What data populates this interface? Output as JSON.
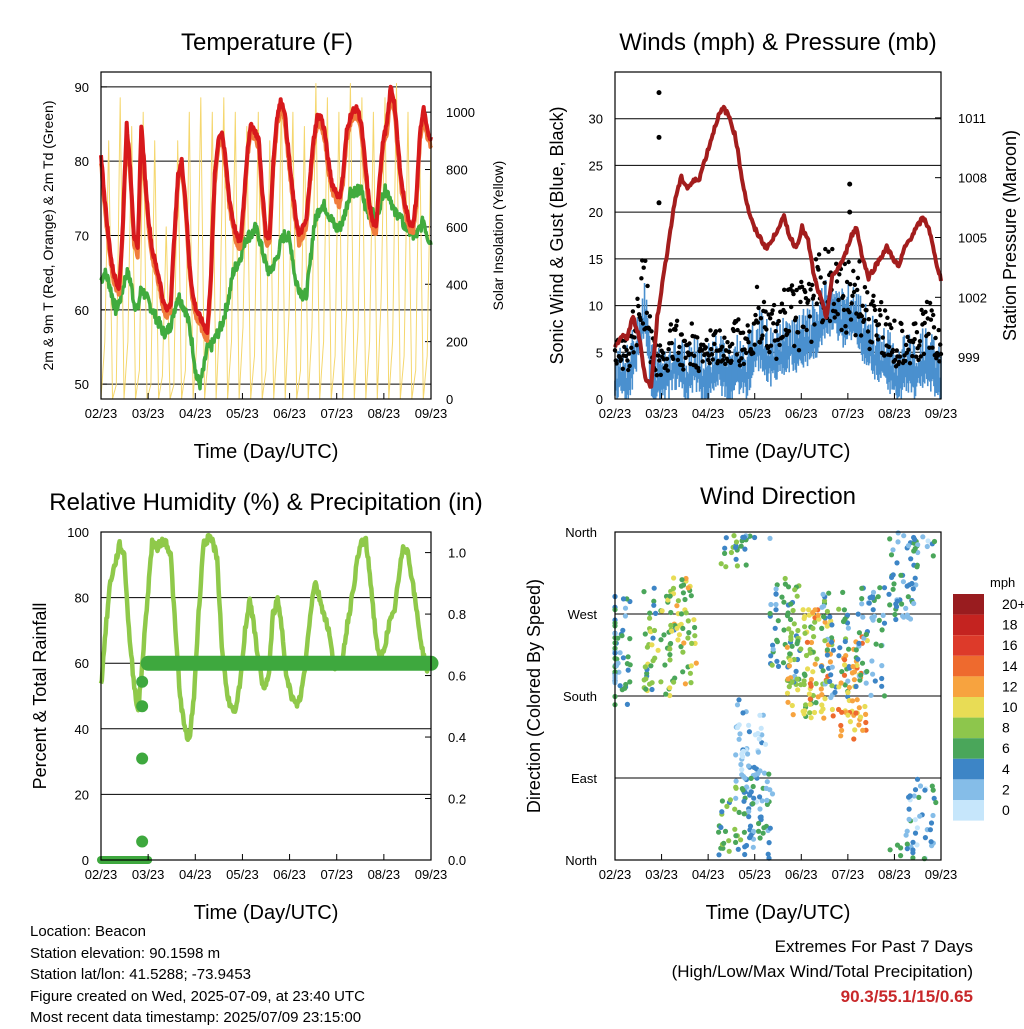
{
  "chart_data": [
    {
      "type": "line",
      "title": "Temperature (F)",
      "xlabel": "Time (Day/UTC)",
      "ylabel": "2m & 9m T (Red, Orange) & 2m Td (Green)",
      "ylabel_right": "Solar Insolation (Yellow)",
      "x_ticks": [
        "02/23",
        "03/23",
        "04/23",
        "05/23",
        "06/23",
        "07/23",
        "08/23",
        "09/23"
      ],
      "ylim": [
        48,
        92
      ],
      "y_ticks": [
        50,
        60,
        70,
        80,
        90
      ],
      "ylim_right": [
        0,
        1140
      ],
      "y_ticks_right": [
        0,
        200,
        400,
        600,
        800,
        1000
      ],
      "grid": "horizontal",
      "series": [
        {
          "name": "2m T",
          "color": "#d7191c",
          "values": [
            81,
            75,
            70,
            66,
            64,
            63,
            72,
            85,
            79,
            70,
            68,
            85,
            78,
            72,
            68,
            66,
            64,
            61,
            60,
            61,
            70,
            78,
            80,
            75,
            67,
            62,
            60,
            59,
            58,
            57,
            65,
            78,
            83,
            84,
            80,
            75,
            72,
            70,
            69,
            75,
            82,
            85,
            84,
            83,
            76,
            70,
            70,
            80,
            86,
            88,
            87,
            82,
            77,
            73,
            70,
            71,
            72,
            78,
            83,
            86,
            86,
            84,
            80,
            77,
            76,
            75,
            78,
            84,
            86,
            87,
            87,
            85,
            80,
            75,
            72,
            71,
            78,
            83,
            85,
            90,
            88,
            82,
            77,
            74,
            72,
            71,
            75,
            84,
            87,
            84,
            83
          ]
        },
        {
          "name": "9m T",
          "color": "#f07c3c",
          "values": [
            80,
            74,
            69,
            65,
            63,
            62,
            71,
            84,
            78,
            69,
            67,
            84,
            77,
            71,
            67,
            65,
            63,
            60,
            59,
            60,
            69,
            77,
            79,
            74,
            66,
            61,
            59,
            58,
            57,
            56,
            64,
            77,
            82,
            83,
            79,
            74,
            71,
            69,
            68,
            74,
            81,
            84,
            83,
            82,
            75,
            69,
            69,
            79,
            85,
            87,
            86,
            81,
            76,
            72,
            69,
            70,
            71,
            77,
            82,
            85,
            85,
            83,
            79,
            76,
            75,
            74,
            77,
            83,
            85,
            86,
            86,
            84,
            79,
            74,
            71,
            70,
            77,
            82,
            84,
            89,
            87,
            81,
            76,
            73,
            71,
            70,
            74,
            83,
            86,
            83,
            82
          ]
        },
        {
          "name": "2m Td",
          "color": "#41ab3e",
          "values": [
            64,
            65,
            64,
            62,
            60,
            61,
            63,
            65,
            64,
            61,
            60,
            63,
            62,
            61,
            60,
            59,
            58,
            57,
            57,
            58,
            60,
            62,
            61,
            60,
            58,
            55,
            51,
            50,
            52,
            55,
            55,
            56,
            57,
            58,
            60,
            62,
            65,
            66,
            67,
            69,
            70,
            70,
            71,
            70,
            68,
            66,
            65,
            66,
            67,
            69,
            70,
            70,
            68,
            64,
            63,
            62,
            62,
            66,
            71,
            73,
            74,
            74,
            73,
            72,
            71,
            71,
            72,
            74,
            76,
            76,
            76,
            76,
            74,
            73,
            73,
            72,
            74,
            76,
            76,
            75,
            73,
            73,
            72,
            71,
            71,
            70,
            70,
            71,
            72,
            70,
            69
          ]
        },
        {
          "name": "Solar Insolation",
          "color": "#f5d76e",
          "values": [
            0,
            200,
            900,
            0,
            50,
            1050,
            0,
            200,
            950,
            0,
            100,
            1000,
            0,
            50,
            900,
            0,
            80,
            600,
            0,
            50,
            900,
            0,
            100,
            1000,
            0,
            200,
            1050,
            0,
            150,
            1000,
            0,
            300,
            1050,
            0,
            200,
            1000,
            0,
            250,
            950,
            0,
            150,
            1000,
            0,
            100,
            900,
            0,
            200,
            1050,
            0,
            300,
            1000,
            0,
            100,
            950,
            0,
            250,
            1100,
            0,
            200,
            1050,
            0,
            150,
            1000,
            0,
            300,
            1100,
            0,
            250,
            1050,
            0,
            200,
            1000,
            0,
            350,
            1050,
            0,
            200,
            1100,
            0,
            150,
            1000,
            0,
            100,
            950,
            0,
            150,
            900
          ]
        }
      ]
    },
    {
      "type": "line",
      "title": "Winds (mph) & Pressure (mb)",
      "xlabel": "Time (Day/UTC)",
      "ylabel": "Sonic Wind & Gust (Blue, Black)",
      "ylabel_right": "Station Pressure (Maroon)",
      "x_ticks": [
        "02/23",
        "03/23",
        "04/23",
        "05/23",
        "06/23",
        "07/23",
        "08/23",
        "09/23"
      ],
      "ylim": [
        0,
        35
      ],
      "y_ticks": [
        0,
        5,
        10,
        15,
        20,
        25,
        30
      ],
      "ylim_right": [
        996.9,
        1013.3
      ],
      "y_ticks_right": [
        999,
        1002,
        1005,
        1008,
        1011
      ],
      "grid": "horizontal",
      "series": [
        {
          "name": "Sonic Wind",
          "color": "#4a90cf",
          "values": [
            3,
            4,
            3,
            5,
            8,
            10,
            4,
            3,
            3,
            4,
            5,
            4,
            3,
            5,
            4,
            3,
            4,
            5,
            4,
            3,
            5,
            4,
            4,
            6,
            7,
            6,
            5,
            6,
            6,
            7,
            6,
            7,
            7,
            8,
            9,
            10,
            11,
            10,
            9,
            10,
            9,
            8,
            7,
            6,
            5,
            5,
            4,
            3,
            5,
            4,
            4,
            5,
            5,
            4,
            3
          ]
        },
        {
          "name": "Gust",
          "color": "#000000",
          "values": [
            6,
            7,
            6,
            10,
            15,
            16,
            8,
            6,
            6,
            8,
            9,
            7,
            6,
            9,
            7,
            6,
            8,
            9,
            7,
            6,
            9,
            8,
            8,
            11,
            13,
            12,
            10,
            11,
            12,
            13,
            12,
            13,
            14,
            15,
            16,
            18,
            17,
            16,
            15,
            17,
            16,
            14,
            13,
            12,
            11,
            10,
            9,
            8,
            10,
            9,
            8,
            10,
            11,
            9,
            7
          ]
        },
        {
          "name": "Gust outliers",
          "color": "#000000",
          "values": [
            32.8,
            28,
            21,
            23,
            20
          ]
        },
        {
          "name": "Station Pressure",
          "color": "#a31d1d",
          "values": [
            999.5,
            1000,
            1000,
            1001,
            1000,
            998,
            997.5,
            1001,
            1003,
            1005,
            1007,
            1008,
            1007.5,
            1007.8,
            1008,
            1009,
            1010,
            1011,
            1011.5,
            1011,
            1010,
            1008,
            1006.5,
            1005.5,
            1005,
            1004.5,
            1004.8,
            1005.5,
            1006,
            1005,
            1004.5,
            1005.5,
            1004.8,
            1003,
            1002,
            1001,
            1003,
            1003.5,
            1004,
            1005,
            1005.5,
            1004,
            1003,
            1003.5,
            1004,
            1004.5,
            1004,
            1003.5,
            1004.5,
            1005,
            1005.5,
            1006,
            1005.5,
            1004,
            1002.9
          ]
        }
      ]
    },
    {
      "type": "line",
      "title": "Relative Humidity (%) & Precipitation (in)",
      "xlabel": "Time (Day/UTC)",
      "ylabel": "Percent & Total Rainfall",
      "x_ticks": [
        "02/23",
        "03/23",
        "04/23",
        "05/23",
        "06/23",
        "07/23",
        "08/23",
        "09/23"
      ],
      "ylim": [
        0,
        100
      ],
      "y_ticks": [
        0,
        20,
        40,
        60,
        80,
        100
      ],
      "ylim_right": [
        0,
        1.067
      ],
      "y_ticks_right": [
        "0.0",
        "0.2",
        "0.4",
        "0.6",
        "0.8",
        "1.0"
      ],
      "grid": "horizontal",
      "series": [
        {
          "name": "Relative Humidity",
          "color": "#8fc94a",
          "values": [
            53,
            70,
            85,
            90,
            96,
            93,
            70,
            55,
            45,
            62,
            80,
            97,
            95,
            97,
            97,
            93,
            70,
            50,
            40,
            36,
            50,
            75,
            96,
            98,
            97,
            92,
            65,
            52,
            46,
            45,
            55,
            70,
            80,
            70,
            60,
            52,
            55,
            75,
            79,
            70,
            55,
            50,
            47,
            50,
            60,
            75,
            85,
            80,
            75,
            70,
            60,
            58,
            62,
            72,
            80,
            90,
            97,
            97,
            85,
            70,
            60,
            65,
            72,
            75,
            85,
            96,
            94,
            85,
            75,
            65,
            58,
            60
          ]
        },
        {
          "name": "Total Rainfall",
          "color": "#3ea83e",
          "x": [
            "02/23",
            "03/23",
            "03/23",
            "03/23",
            "03/23",
            "03/23",
            "03/23",
            "09/23"
          ],
          "values": [
            0,
            0,
            0.06,
            0.33,
            0.5,
            0.58,
            0.64,
            0.64
          ]
        }
      ]
    },
    {
      "type": "scatter",
      "title": "Wind Direction",
      "xlabel": "Time (Day/UTC)",
      "ylabel": "Direction (Colored By Speed)",
      "x_ticks": [
        "02/23",
        "03/23",
        "04/23",
        "05/23",
        "06/23",
        "07/23",
        "08/23",
        "09/23"
      ],
      "y_ticks": [
        "North",
        "East",
        "South",
        "West",
        "North"
      ],
      "grid": "horizontal",
      "colorbar": {
        "title": "mph",
        "labels": [
          "20+",
          "18",
          "16",
          "14",
          "12",
          "10",
          "8",
          "6",
          "4",
          "2",
          "0"
        ],
        "colors": [
          "#991c1f",
          "#c42320",
          "#dd3a2a",
          "#ee6a2e",
          "#f7a33f",
          "#e8dc55",
          "#8dc64c",
          "#4aa65a",
          "#3d85c6",
          "#85bde8",
          "#c6e6fb"
        ]
      },
      "series": [
        {
          "name": "Direction",
          "clusters": [
            {
              "day": 0,
              "dir": 230,
              "speed": 4
            },
            {
              "day": 1.3,
              "dir": 240,
              "speed": 7
            },
            {
              "day": 2,
              "dir": 250,
              "speed": 9
            },
            {
              "day": 3.5,
              "dir": 20,
              "speed": 6
            },
            {
              "day": 4,
              "dir": 120,
              "speed": 2
            },
            {
              "day": 4.2,
              "dir": 40,
              "speed": 4
            },
            {
              "day": 5,
              "dir": 250,
              "speed": 5
            },
            {
              "day": 5.5,
              "dir": 215,
              "speed": 9
            },
            {
              "day": 6,
              "dir": 215,
              "speed": 11
            },
            {
              "day": 6.5,
              "dir": 235,
              "speed": 5
            },
            {
              "day": 7,
              "dir": 190,
              "speed": 12
            },
            {
              "day": 7.5,
              "dir": 240,
              "speed": 4
            },
            {
              "day": 8.5,
              "dir": 320,
              "speed": 4
            },
            {
              "day": 9,
              "dir": 30,
              "speed": 3
            }
          ]
        }
      ]
    }
  ],
  "info": {
    "location": "Location: Beacon",
    "elevation": "Station elevation: 90.1598 m",
    "latlon": "Station lat/lon: 41.5288; -73.9453",
    "created": "Figure created on Wed, 2025-07-09, at 23:40 UTC",
    "latest": "Most recent data timestamp: 2025/07/09 23:15:00"
  },
  "extremes": {
    "title": "Extremes For Past 7 Days",
    "subtitle": "(High/Low/Max Wind/Total Precipitation)",
    "values": "90.3/55.1/15/0.65"
  }
}
